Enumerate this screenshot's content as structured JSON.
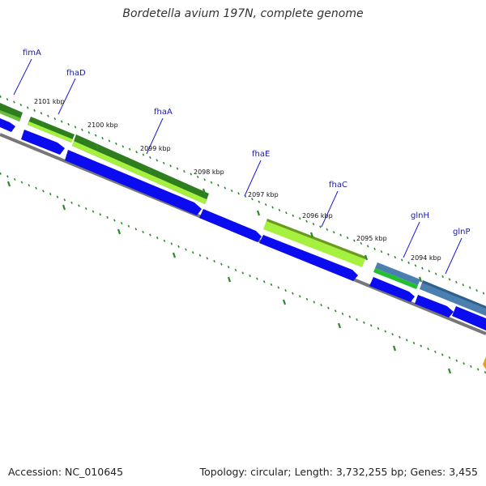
{
  "title": "Bordetella avium 197N, complete genome",
  "footer": {
    "accession": "Accession: NC_010645",
    "summary": "Topology: circular; Length: 3,732,255 bp; Genes: 3,455"
  },
  "genes": [
    {
      "name": "fimA",
      "color": "#1a1aa8"
    },
    {
      "name": "fhaD",
      "color": "#1a1aa8"
    },
    {
      "name": "fhaA",
      "color": "#1a1aa8"
    },
    {
      "name": "fhaE",
      "color": "#1a1aa8"
    },
    {
      "name": "fhaC",
      "color": "#1a1aa8"
    },
    {
      "name": "glnH",
      "color": "#1a1aa8"
    },
    {
      "name": "glnP",
      "color": "#1a1aa8"
    }
  ],
  "ticks": [
    "2101 kbp",
    "2100 kbp",
    "2099 kbp",
    "2098 kbp",
    "2097 kbp",
    "2096 kbp",
    "2095 kbp",
    "2094 kbp"
  ],
  "colors": {
    "cds": "#0b0bf0",
    "cds_light": "#8080ff",
    "backbone": "#777777",
    "tick": "#2a8a2a",
    "feature_green": "#2e7d1e",
    "feature_lime": "#a6f040",
    "feature_steel": "#4a7fb0",
    "gc_skew": "#e8a010"
  }
}
